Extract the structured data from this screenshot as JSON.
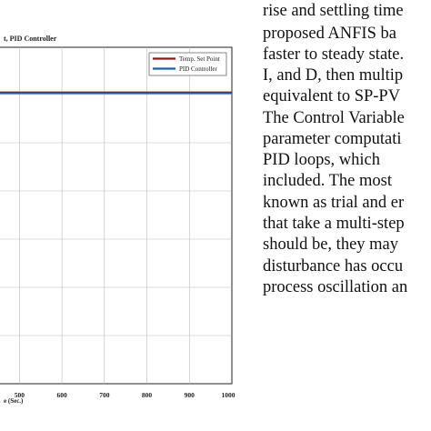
{
  "figure": {
    "title_fragment": "t, PID Controller",
    "xlabel_fragment": "e (Sec.)",
    "legend": [
      {
        "label": "Temp. Set Point",
        "color": "#8b1a1a"
      },
      {
        "label": "PID Controller",
        "color": "#1f5fa8"
      }
    ]
  },
  "chart_data": {
    "type": "line",
    "title": "t, PID Controller",
    "xlabel": "e (Sec.)",
    "x_ticks": [
      "500",
      "600",
      "700",
      "800",
      "900",
      "1000"
    ],
    "xlim": [
      450,
      1000
    ],
    "grid": true,
    "legend_position": "top-right",
    "series": [
      {
        "name": "Temp. Set Point",
        "color": "#8b1a1a",
        "x": [
          450,
          1000
        ],
        "y": [
          1,
          1
        ]
      },
      {
        "name": "PID Controller",
        "color": "#1f5fa8",
        "x": [
          450,
          1000
        ],
        "y": [
          1,
          1
        ]
      }
    ]
  },
  "text_lines": [
    "rise and settling time",
    "proposed ANFIS ba",
    "faster to steady state.",
    "I, and D, then multip",
    "equivalent to SP-PV",
    "The Control Variable",
    "parameter computati",
    "PID loops, which",
    "included. The most",
    "known as trial and er",
    "that take a multi-step",
    "should be, they may",
    "disturbance has occu",
    "process oscillation an"
  ]
}
